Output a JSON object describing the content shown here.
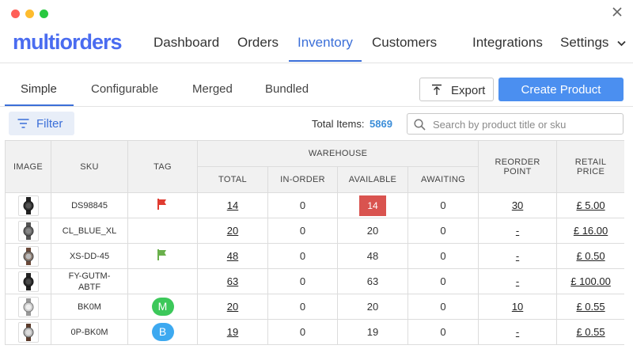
{
  "nav": {
    "logo": "multiorders",
    "items": [
      "Dashboard",
      "Orders",
      "Inventory",
      "Customers",
      "Integrations",
      "Settings"
    ]
  },
  "subtabs": [
    "Simple",
    "Configurable",
    "Merged",
    "Bundled"
  ],
  "actions": {
    "export_label": "Export",
    "create_label": "Create Product"
  },
  "filter": {
    "label": "Filter"
  },
  "totals": {
    "label": "Total Items:",
    "count": "5869"
  },
  "search": {
    "placeholder": "Search by product title or sku",
    "value": ""
  },
  "table": {
    "headers": {
      "image": "IMAGE",
      "sku": "SKU",
      "tag": "TAG",
      "warehouse": "WAREHOUSE",
      "total": "TOTAL",
      "in_order": "IN-ORDER",
      "available": "AVAILABLE",
      "awaiting": "AWAITING",
      "reorder_1": "REORDER",
      "reorder_2": "POINT",
      "retail_1": "RETAIL",
      "retail_2": "PRICE"
    },
    "rows": [
      {
        "sku": "DS98845",
        "tag": "red-flag",
        "total": "14",
        "in_order": "0",
        "available": "14",
        "awaiting": "0",
        "reorder": "30",
        "price": "£ 5.00"
      },
      {
        "sku": "CL_BLUE_XL",
        "tag": "",
        "total": "20",
        "in_order": "0",
        "available": "20",
        "awaiting": "0",
        "reorder": "-",
        "price": "£ 16.00"
      },
      {
        "sku": "XS-DD-45",
        "tag": "green-flag",
        "total": "48",
        "in_order": "0",
        "available": "48",
        "awaiting": "0",
        "reorder": "-",
        "price": "£ 0.50"
      },
      {
        "sku_line1": "FY-GUTM-",
        "sku_line2": "ABTF",
        "tag": "",
        "total": "63",
        "in_order": "0",
        "available": "63",
        "awaiting": "0",
        "reorder": "-",
        "price": "£ 100.00"
      },
      {
        "sku": "BK0M",
        "tag": "M",
        "total": "20",
        "in_order": "0",
        "available": "20",
        "awaiting": "0",
        "reorder": "10",
        "price": "£ 0.55"
      },
      {
        "sku": "0P-BK0M",
        "tag": "B",
        "total": "19",
        "in_order": "0",
        "available": "19",
        "awaiting": "0",
        "reorder": "-",
        "price": "£ 0.55"
      }
    ]
  },
  "colors": {
    "accent": "#3b6fd8",
    "primary_button": "#4b8ff0",
    "low_stock": "#d9534f",
    "tag_m": "#3cc85a",
    "tag_b": "#3da9f0",
    "flag_red": "#e03c31",
    "flag_green": "#6ab04c"
  }
}
